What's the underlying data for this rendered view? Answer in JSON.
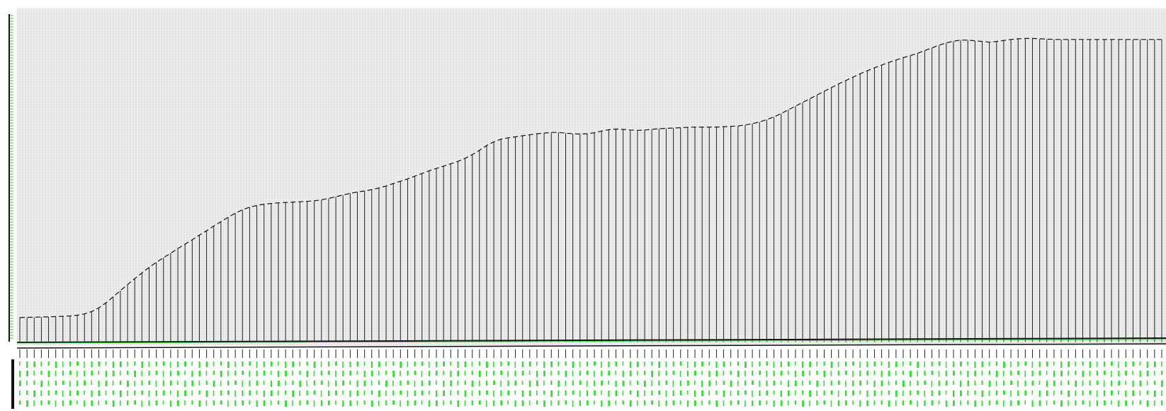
{
  "chart_data": {
    "type": "line",
    "title": "",
    "xlabel": "",
    "ylabel": "",
    "grid": true,
    "legend": "none",
    "point_count": 160,
    "ylim": [
      0,
      100
    ],
    "series": [
      {
        "values": [
          8.2,
          8.3,
          8.3,
          8.4,
          8.4,
          8.5,
          8.6,
          8.7,
          8.9,
          9.3,
          10.0,
          11.1,
          12.6,
          14.4,
          16.2,
          18.0,
          19.8,
          21.5,
          23.1,
          24.6,
          26.0,
          27.3,
          28.7,
          30.0,
          31.3,
          32.7,
          34.0,
          35.4,
          36.7,
          38.0,
          39.2,
          40.2,
          41.0,
          41.5,
          41.9,
          42.1,
          42.3,
          42.4,
          42.5,
          42.6,
          42.7,
          42.9,
          43.2,
          43.6,
          44.1,
          44.6,
          45.1,
          45.5,
          45.8,
          46.2,
          46.7,
          47.3,
          48.0,
          48.7,
          49.4,
          50.2,
          51.0,
          51.8,
          52.5,
          53.2,
          53.9,
          54.6,
          55.5,
          56.6,
          57.9,
          59.3,
          60.4,
          61.2,
          61.6,
          61.9,
          62.2,
          62.5,
          62.8,
          63.0,
          63.2,
          63.2,
          63.0,
          62.8,
          62.7,
          62.8,
          63.1,
          63.6,
          64.0,
          64.2,
          64.1,
          63.9,
          63.8,
          63.9,
          64.1,
          64.3,
          64.4,
          64.5,
          64.6,
          64.7,
          64.8,
          64.8,
          64.8,
          64.8,
          64.9,
          65.0,
          65.1,
          65.4,
          65.8,
          66.3,
          67.0,
          67.8,
          68.8,
          69.9,
          71.0,
          72.1,
          73.2,
          74.3,
          75.4,
          76.5,
          77.6,
          78.6,
          79.6,
          80.6,
          81.5,
          82.4,
          83.2,
          84.0,
          84.7,
          85.4,
          86.0,
          86.7,
          87.5,
          88.3,
          89.1,
          89.8,
          90.3,
          90.6,
          90.6,
          90.4,
          90.2,
          90.0,
          90.2,
          90.5,
          90.8,
          91.0,
          91.1,
          91.1,
          91.0,
          90.9,
          90.8,
          90.8,
          90.8,
          90.8,
          90.8,
          90.8,
          90.8,
          90.8,
          90.8,
          90.8,
          90.8,
          90.8,
          90.8,
          90.8,
          90.8,
          90.8
        ]
      }
    ]
  }
}
